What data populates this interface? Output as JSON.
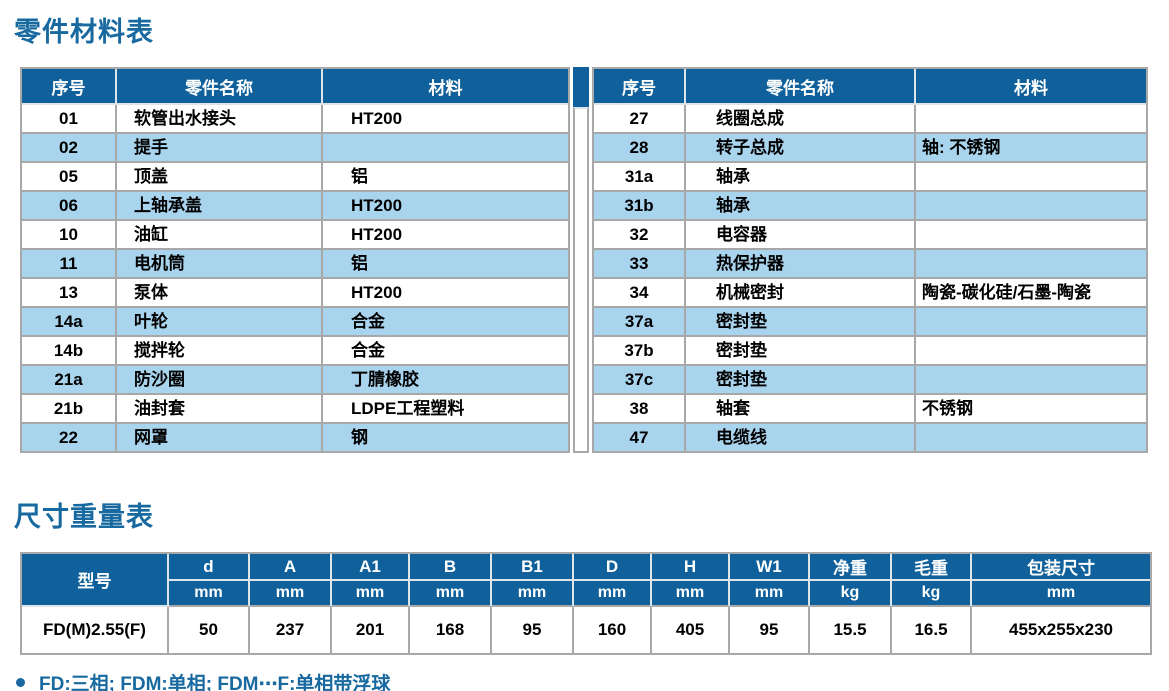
{
  "sections": {
    "parts_title": "零件材料表",
    "dims_title": "尺寸重量表"
  },
  "parts_table": {
    "headers": {
      "no": "序号",
      "name": "零件名称",
      "material": "材料"
    },
    "left_rows": [
      {
        "no": "01",
        "name": "软管出水接头",
        "material": "HT200"
      },
      {
        "no": "02",
        "name": "提手",
        "material": ""
      },
      {
        "no": "05",
        "name": "顶盖",
        "material": "铝"
      },
      {
        "no": "06",
        "name": "上轴承盖",
        "material": "HT200"
      },
      {
        "no": "10",
        "name": "油缸",
        "material": "HT200"
      },
      {
        "no": "11",
        "name": "电机筒",
        "material": "铝"
      },
      {
        "no": "13",
        "name": "泵体",
        "material": "HT200"
      },
      {
        "no": "14a",
        "name": "叶轮",
        "material": "合金"
      },
      {
        "no": "14b",
        "name": "搅拌轮",
        "material": "合金"
      },
      {
        "no": "21a",
        "name": "防沙圈",
        "material": "丁腈橡胶"
      },
      {
        "no": "21b",
        "name": "油封套",
        "material": "LDPE工程塑料"
      },
      {
        "no": "22",
        "name": "网罩",
        "material": "钢"
      }
    ],
    "right_rows": [
      {
        "no": "27",
        "name": "线圈总成",
        "material": ""
      },
      {
        "no": "28",
        "name": "转子总成",
        "material": "轴: 不锈钢"
      },
      {
        "no": "31a",
        "name": "轴承",
        "material": ""
      },
      {
        "no": "31b",
        "name": "轴承",
        "material": ""
      },
      {
        "no": "32",
        "name": "电容器",
        "material": ""
      },
      {
        "no": "33",
        "name": "热保护器",
        "material": ""
      },
      {
        "no": "34",
        "name": "机械密封",
        "material": "陶瓷-碳化硅/石墨-陶瓷"
      },
      {
        "no": "37a",
        "name": "密封垫",
        "material": ""
      },
      {
        "no": "37b",
        "name": "密封垫",
        "material": ""
      },
      {
        "no": "37c",
        "name": "密封垫",
        "material": ""
      },
      {
        "no": "38",
        "name": "轴套",
        "material": "不锈钢"
      },
      {
        "no": "47",
        "name": "电缆线",
        "material": ""
      }
    ]
  },
  "dims_table": {
    "model_header": "型号",
    "columns": [
      {
        "label": "d",
        "unit": "mm"
      },
      {
        "label": "A",
        "unit": "mm"
      },
      {
        "label": "A1",
        "unit": "mm"
      },
      {
        "label": "B",
        "unit": "mm"
      },
      {
        "label": "B1",
        "unit": "mm"
      },
      {
        "label": "D",
        "unit": "mm"
      },
      {
        "label": "H",
        "unit": "mm"
      },
      {
        "label": "W1",
        "unit": "mm"
      },
      {
        "label": "净重",
        "unit": "kg"
      },
      {
        "label": "毛重",
        "unit": "kg"
      },
      {
        "label": "包装尺寸",
        "unit": "mm"
      }
    ],
    "rows": [
      {
        "model": "FD(M)2.55(F)",
        "values": [
          "50",
          "237",
          "201",
          "168",
          "95",
          "160",
          "405",
          "95",
          "15.5",
          "16.5",
          "455x255x230"
        ]
      }
    ]
  },
  "footer": {
    "note": "FD:三相; FDM:单相; FDM⋯F:单相带浮球"
  },
  "colors": {
    "header_bg": "#10619b",
    "stripe_row": "#a9d4ee",
    "title_text": "#17699f",
    "border": "#a8a8a8"
  }
}
